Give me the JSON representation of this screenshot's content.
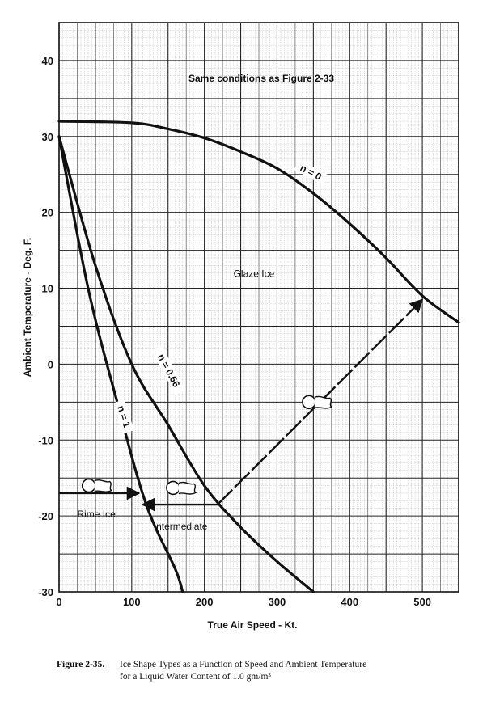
{
  "chart_data": {
    "type": "line",
    "title": "Same conditions as Figure 2-33",
    "xlabel": "True Air Speed - Kt.",
    "ylabel": "Ambient Temperature - Deg. F.",
    "xlim": [
      0,
      550
    ],
    "ylim": [
      -30,
      45
    ],
    "x_ticks": [
      0,
      100,
      200,
      300,
      400,
      500
    ],
    "x_tick_labels": [
      "0",
      "100",
      "200",
      "300",
      "400",
      "500"
    ],
    "y_ticks": [
      -30,
      -20,
      -10,
      0,
      10,
      20,
      30,
      40
    ],
    "y_tick_labels": [
      "-30",
      "-20",
      "-10",
      "0",
      "10",
      "20",
      "30",
      "40"
    ],
    "grid": true,
    "series": [
      {
        "name": "n = 0",
        "x": [
          0,
          100,
          150,
          200,
          250,
          300,
          350,
          400,
          450,
          500,
          550
        ],
        "y": [
          32,
          31.8,
          31,
          29.8,
          28,
          25.8,
          22.5,
          18.5,
          14,
          9,
          5.5
        ],
        "label_text": "n = 0",
        "label_at": [
          345,
          25
        ],
        "label_angle": 28
      },
      {
        "name": "n = 0.66",
        "x": [
          0,
          50,
          100,
          150,
          200,
          250,
          300,
          350
        ],
        "y": [
          30,
          13,
          0,
          -8,
          -16,
          -21.5,
          -26,
          -30
        ],
        "label_text": "n = 0.66",
        "label_at": [
          148,
          -1
        ],
        "label_angle": 62
      },
      {
        "name": "n = 1",
        "x": [
          0,
          40,
          80,
          120,
          160,
          170
        ],
        "y": [
          30,
          10,
          -5,
          -18.5,
          -27,
          -30
        ],
        "label_text": "n = 1",
        "label_at": [
          86,
          -7
        ],
        "label_angle": 72
      }
    ],
    "construction_lines": [
      {
        "name": "rime-construction",
        "x": [
          0,
          110
        ],
        "y": [
          -17,
          -17
        ],
        "arrow": "end"
      },
      {
        "name": "intermediate-construction",
        "x": [
          115,
          218
        ],
        "y": [
          -18.5,
          -18.5
        ],
        "arrow": "start"
      },
      {
        "name": "diagonal-construction",
        "x": [
          218,
          500
        ],
        "y": [
          -18.5,
          8.5
        ],
        "arrow": "end"
      }
    ],
    "regions": [
      {
        "text": "Glaze Ice",
        "at": [
          240,
          11.5
        ]
      },
      {
        "text": "Rime Ice",
        "at": [
          25,
          -20.2
        ]
      },
      {
        "text": "Intermediate",
        "at": [
          130,
          -21.8
        ]
      }
    ],
    "ice_shape_markers": [
      {
        "name": "rime-ice-shape-marker",
        "at": [
          52,
          -16
        ]
      },
      {
        "name": "intermediate-ice-shape-marker",
        "at": [
          168,
          -16.3
        ]
      },
      {
        "name": "glaze-ice-shape-marker",
        "at": [
          355,
          -5
        ]
      }
    ],
    "caption_number": "Figure 2-35.",
    "caption_line1": "Ice Shape Types as a Function of Speed and Ambient Temperature",
    "caption_line2": "for a Liquid Water Content of 1.0 gm/m³"
  }
}
